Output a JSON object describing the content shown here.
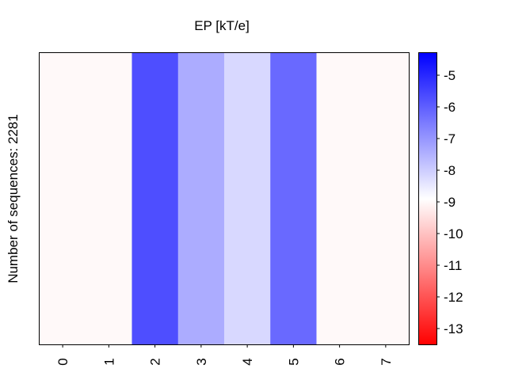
{
  "chart_data": {
    "type": "heatmap",
    "title": "EP [kT/e]",
    "ylabel": "Number of sequences: 2281",
    "xlabel": "",
    "x_categories": [
      "0",
      "1",
      "2",
      "3",
      "4",
      "5",
      "6",
      "7"
    ],
    "values": [
      -9.0,
      -9.0,
      -5.7,
      -7.4,
      -8.2,
      -6.2,
      -9.0,
      -9.0
    ],
    "colorbar": {
      "min": -13.5,
      "max": -4.3,
      "ticks": [
        -5,
        -6,
        -7,
        -8,
        -9,
        -10,
        -11,
        -12,
        -13
      ],
      "tick_labels": [
        "-5",
        "-6",
        "-7",
        "-8",
        "-9",
        "-10",
        "-11",
        "-12",
        "-13"
      ],
      "colormap": "bwr_reversed",
      "colors": {
        "low": "#ff0000",
        "mid": "#ffffff",
        "high": "#0000ff"
      }
    },
    "grid": false
  }
}
